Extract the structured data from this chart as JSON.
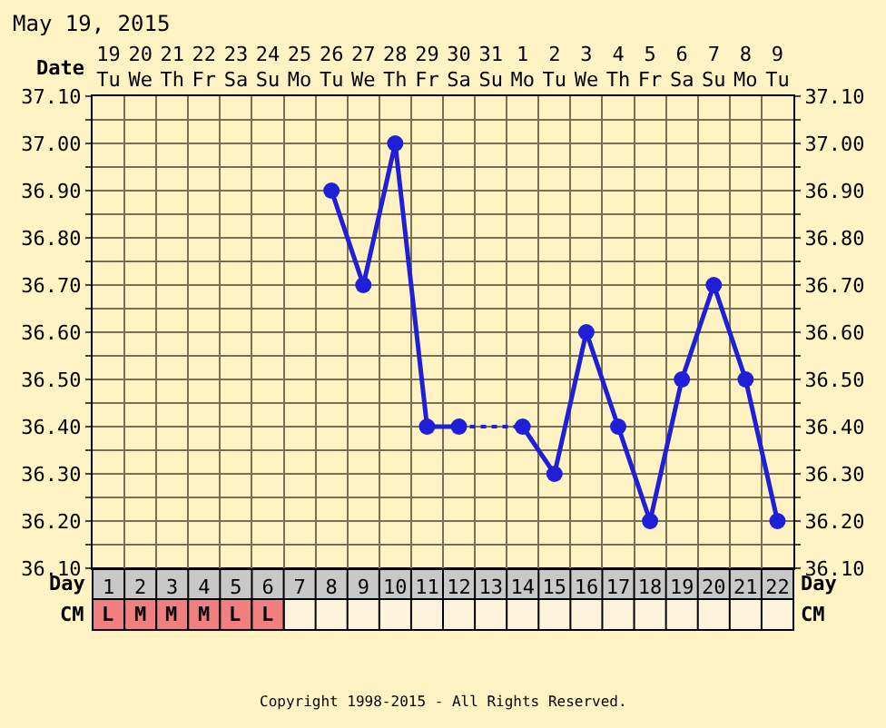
{
  "chart_data": {
    "type": "line",
    "title": "May 19, 2015",
    "xlabel": "Date",
    "x2label": "Day",
    "categories": [
      "19\nTu",
      "20\nWe",
      "21\nTh",
      "22\nFr",
      "23\nSa",
      "24\nSu",
      "25\nMo",
      "26\nTu",
      "27\nWe",
      "28\nTh",
      "29\nFr",
      "30\nSa",
      "31\nSu",
      "1\nMo",
      "2\nTu",
      "3\nWe",
      "4\nTh",
      "5\nFr",
      "6\nSa",
      "7\nSu",
      "8\nMo",
      "9\nTu"
    ],
    "series": [
      {
        "color": "#1f1fd8",
        "values": [
          null,
          null,
          null,
          null,
          null,
          null,
          null,
          36.9,
          36.7,
          37.0,
          36.4,
          36.4,
          null,
          36.4,
          36.3,
          36.6,
          36.4,
          36.2,
          36.5,
          36.7,
          36.5,
          36.2
        ]
      }
    ],
    "x2lim": [
      0.5,
      22.5
    ],
    "x2ticks": [
      1,
      2,
      3,
      4,
      5,
      6,
      7,
      8,
      9,
      10,
      11,
      12,
      13,
      14,
      15,
      16,
      17,
      18,
      19,
      20,
      21,
      22
    ],
    "ylim": [
      36.1,
      37.1
    ],
    "yticks": [
      {
        "value": 36.1,
        "label": "36.10"
      },
      {
        "value": 36.15,
        "label": null
      },
      {
        "value": 36.2,
        "label": "36.20"
      },
      {
        "value": 36.25,
        "label": null
      },
      {
        "value": 36.3,
        "label": "36.30"
      },
      {
        "value": 36.35,
        "label": null
      },
      {
        "value": 36.4,
        "label": "36.40"
      },
      {
        "value": 36.45,
        "label": null
      },
      {
        "value": 36.5,
        "label": "36.50"
      },
      {
        "value": 36.55,
        "label": null
      },
      {
        "value": 36.6,
        "label": "36.60"
      },
      {
        "value": 36.65,
        "label": null
      },
      {
        "value": 36.7,
        "label": "36.70"
      },
      {
        "value": 36.75,
        "label": null
      },
      {
        "value": 36.8,
        "label": "36.80"
      },
      {
        "value": 36.85,
        "label": null
      },
      {
        "value": 36.9,
        "label": "36.90"
      },
      {
        "value": 36.95,
        "label": null
      },
      {
        "value": 37.0,
        "label": "37.00"
      },
      {
        "value": 37.05,
        "label": null
      },
      {
        "value": 37.1,
        "label": "37.10"
      }
    ],
    "y2lim": [
      36.1,
      37.1
    ],
    "y2ticks": [
      {
        "value": 36.1,
        "label": "36.10"
      },
      {
        "value": 36.15,
        "label": null
      },
      {
        "value": 36.2,
        "label": "36.20"
      },
      {
        "value": 36.25,
        "label": null
      },
      {
        "value": 36.3,
        "label": "36.30"
      },
      {
        "value": 36.35,
        "label": null
      },
      {
        "value": 36.4,
        "label": "36.40"
      },
      {
        "value": 36.45,
        "label": null
      },
      {
        "value": 36.5,
        "label": "36.50"
      },
      {
        "value": 36.55,
        "label": null
      },
      {
        "value": 36.6,
        "label": "36.60"
      },
      {
        "value": 36.65,
        "label": null
      },
      {
        "value": 36.7,
        "label": "36.70"
      },
      {
        "value": 36.75,
        "label": null
      },
      {
        "value": 36.8,
        "label": "36.80"
      },
      {
        "value": 36.85,
        "label": null
      },
      {
        "value": 36.9,
        "label": "36.90"
      },
      {
        "value": 36.95,
        "label": null
      },
      {
        "value": 37.0,
        "label": "37.00"
      },
      {
        "value": 37.05,
        "label": null
      },
      {
        "value": 37.1,
        "label": "37.10"
      }
    ],
    "grid": true,
    "marker": "circle",
    "line_style": "solid",
    "annotations": [
      "CM",
      "L",
      "M",
      "M",
      "M",
      "L",
      "L",
      "Copyright 1998-2015 - All Rights Reserved."
    ]
  }
}
